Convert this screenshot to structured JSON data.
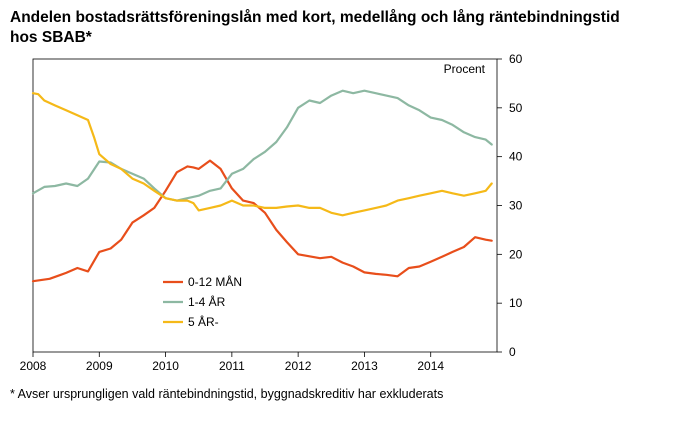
{
  "title": [
    "Andelen bostadsrättsföreningslån med kort, medellång och lång räntebindningstid",
    "hos SBAB*"
  ],
  "footnote": "* Avser ursprungligen vald räntebindningstid, byggnadskreditiv har exkluderats",
  "chart_data": {
    "type": "line",
    "ylabel": "Procent",
    "ylim": [
      0,
      60
    ],
    "yticks": [
      0,
      10,
      20,
      30,
      40,
      50,
      60
    ],
    "xlim": [
      2008,
      2015
    ],
    "xticks": [
      2008,
      2009,
      2010,
      2011,
      2012,
      2013,
      2014
    ],
    "grid": false,
    "legend_position": "lower-left",
    "series": [
      {
        "name": "0-12 MÅN",
        "color": "#E84E1B",
        "x": [
          2008.0,
          2008.25,
          2008.42,
          2008.5,
          2008.67,
          2008.83,
          2009.0,
          2009.17,
          2009.33,
          2009.5,
          2009.67,
          2009.83,
          2010.0,
          2010.17,
          2010.33,
          2010.42,
          2010.5,
          2010.67,
          2010.83,
          2011.0,
          2011.17,
          2011.33,
          2011.5,
          2011.67,
          2011.83,
          2012.0,
          2012.17,
          2012.33,
          2012.5,
          2012.67,
          2012.83,
          2013.0,
          2013.17,
          2013.33,
          2013.5,
          2013.67,
          2013.83,
          2014.0,
          2014.17,
          2014.33,
          2014.5,
          2014.67,
          2014.83,
          2014.92
        ],
        "values": [
          14.5,
          15.0,
          15.8,
          16.2,
          17.2,
          16.5,
          20.5,
          21.2,
          23.0,
          26.5,
          28.0,
          29.5,
          33.0,
          36.8,
          38.0,
          37.8,
          37.5,
          39.2,
          37.5,
          33.5,
          31.0,
          30.5,
          28.5,
          25.0,
          22.5,
          20.0,
          19.6,
          19.2,
          19.5,
          18.3,
          17.5,
          16.3,
          16.0,
          15.8,
          15.5,
          17.2,
          17.5,
          18.5,
          19.5,
          20.5,
          21.5,
          23.5,
          23.0,
          22.8
        ]
      },
      {
        "name": "1-4 ÅR",
        "color": "#8DB8A2",
        "x": [
          2008.0,
          2008.17,
          2008.33,
          2008.5,
          2008.67,
          2008.83,
          2009.0,
          2009.17,
          2009.33,
          2009.5,
          2009.67,
          2009.83,
          2010.0,
          2010.17,
          2010.33,
          2010.5,
          2010.67,
          2010.83,
          2011.0,
          2011.17,
          2011.33,
          2011.5,
          2011.67,
          2011.83,
          2012.0,
          2012.17,
          2012.33,
          2012.5,
          2012.67,
          2012.83,
          2013.0,
          2013.17,
          2013.33,
          2013.5,
          2013.67,
          2013.83,
          2014.0,
          2014.17,
          2014.33,
          2014.5,
          2014.67,
          2014.83,
          2014.92
        ],
        "values": [
          32.5,
          33.8,
          34.0,
          34.5,
          34.0,
          35.5,
          39.0,
          38.8,
          37.5,
          36.5,
          35.5,
          33.5,
          31.5,
          31.0,
          31.5,
          32.0,
          33.0,
          33.5,
          36.5,
          37.5,
          39.5,
          41.0,
          43.0,
          46.0,
          50.0,
          51.5,
          51.0,
          52.5,
          53.5,
          53.0,
          53.5,
          53.0,
          52.5,
          52.0,
          50.5,
          49.5,
          48.0,
          47.5,
          46.5,
          45.0,
          44.0,
          43.5,
          42.5
        ]
      },
      {
        "name": "5 ÅR-",
        "color": "#F5B918",
        "x": [
          2008.0,
          2008.08,
          2008.17,
          2008.33,
          2008.5,
          2008.67,
          2008.83,
          2008.92,
          2009.0,
          2009.17,
          2009.33,
          2009.5,
          2009.67,
          2009.83,
          2010.0,
          2010.17,
          2010.33,
          2010.42,
          2010.5,
          2010.67,
          2010.83,
          2011.0,
          2011.17,
          2011.33,
          2011.5,
          2011.67,
          2011.83,
          2012.0,
          2012.17,
          2012.33,
          2012.5,
          2012.67,
          2012.83,
          2013.0,
          2013.17,
          2013.33,
          2013.5,
          2013.67,
          2013.83,
          2014.0,
          2014.17,
          2014.33,
          2014.5,
          2014.67,
          2014.83,
          2014.92
        ],
        "values": [
          53.0,
          52.8,
          51.5,
          50.5,
          49.5,
          48.5,
          47.5,
          44.0,
          40.5,
          38.5,
          37.5,
          35.5,
          34.5,
          33.0,
          31.5,
          31.0,
          31.0,
          30.5,
          29.0,
          29.5,
          30.0,
          31.0,
          30.0,
          30.0,
          29.5,
          29.5,
          29.8,
          30.0,
          29.5,
          29.5,
          28.5,
          28.0,
          28.5,
          29.0,
          29.5,
          30.0,
          31.0,
          31.5,
          32.0,
          32.5,
          33.0,
          32.5,
          32.0,
          32.5,
          33.0,
          34.5
        ]
      }
    ]
  }
}
